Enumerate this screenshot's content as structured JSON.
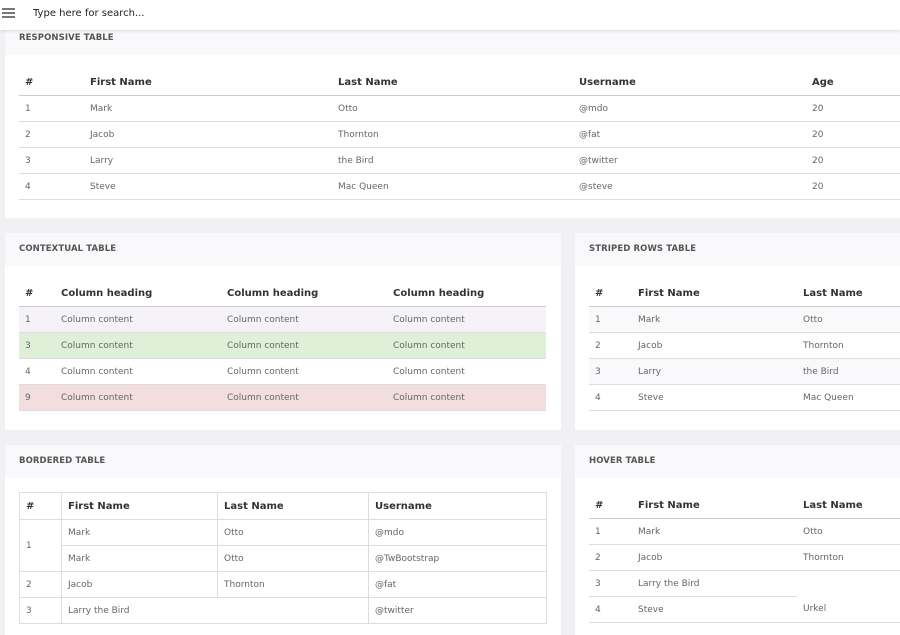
{
  "search": {
    "placeholder": "Type here for search..."
  },
  "responsive_table": {
    "title": "RESPONSIVE TABLE",
    "headers": [
      "#",
      "First Name",
      "Last Name",
      "Username",
      "Age"
    ],
    "rows": [
      [
        "1",
        "Mark",
        "Otto",
        "@mdo",
        "20"
      ],
      [
        "2",
        "Jacob",
        "Thornton",
        "@fat",
        "20"
      ],
      [
        "3",
        "Larry",
        "the Bird",
        "@twitter",
        "20"
      ],
      [
        "4",
        "Steve",
        "Mac Queen",
        "@steve",
        "20"
      ]
    ]
  },
  "contextual_table": {
    "title": "CONTEXTUAL TABLE",
    "headers": [
      "#",
      "Column heading",
      "Column heading",
      "Column heading"
    ],
    "rows": [
      [
        "1",
        "Column content",
        "Column content",
        "Column content"
      ],
      [
        "3",
        "Column content",
        "Column content",
        "Column content"
      ],
      [
        "4",
        "Column content",
        "Column content",
        "Column content"
      ],
      [
        "9",
        "Column content",
        "Column content",
        "Column content"
      ]
    ]
  },
  "striped_table": {
    "title": "STRIPED ROWS TABLE",
    "headers": [
      "#",
      "First Name",
      "Last Name"
    ],
    "rows": [
      [
        "1",
        "Mark",
        "Otto"
      ],
      [
        "2",
        "Jacob",
        "Thornton"
      ],
      [
        "3",
        "Larry",
        "the Bird"
      ],
      [
        "4",
        "Steve",
        "Mac Queen"
      ]
    ]
  },
  "bordered_table": {
    "title": "BORDERED TABLE",
    "headers": [
      "#",
      "First Name",
      "Last Name",
      "Username"
    ],
    "rows": [
      [
        "1",
        "Mark",
        "Otto",
        "@mdo"
      ],
      [
        "Mark",
        "Otto",
        "@TwBootstrap"
      ],
      [
        "2",
        "Jacob",
        "Thornton",
        "@fat"
      ],
      [
        "3",
        "Larry the Bird",
        "@twitter"
      ]
    ]
  },
  "hover_table": {
    "title": "HOVER TABLE",
    "headers": [
      "#",
      "First Name",
      "Last Name"
    ],
    "rows": [
      [
        "1",
        "Mark",
        "Otto"
      ],
      [
        "2",
        "Jacob",
        "Thornton"
      ],
      [
        "3",
        "Larry the Bird"
      ],
      [
        "4",
        "Steve",
        "Urkel"
      ]
    ]
  }
}
